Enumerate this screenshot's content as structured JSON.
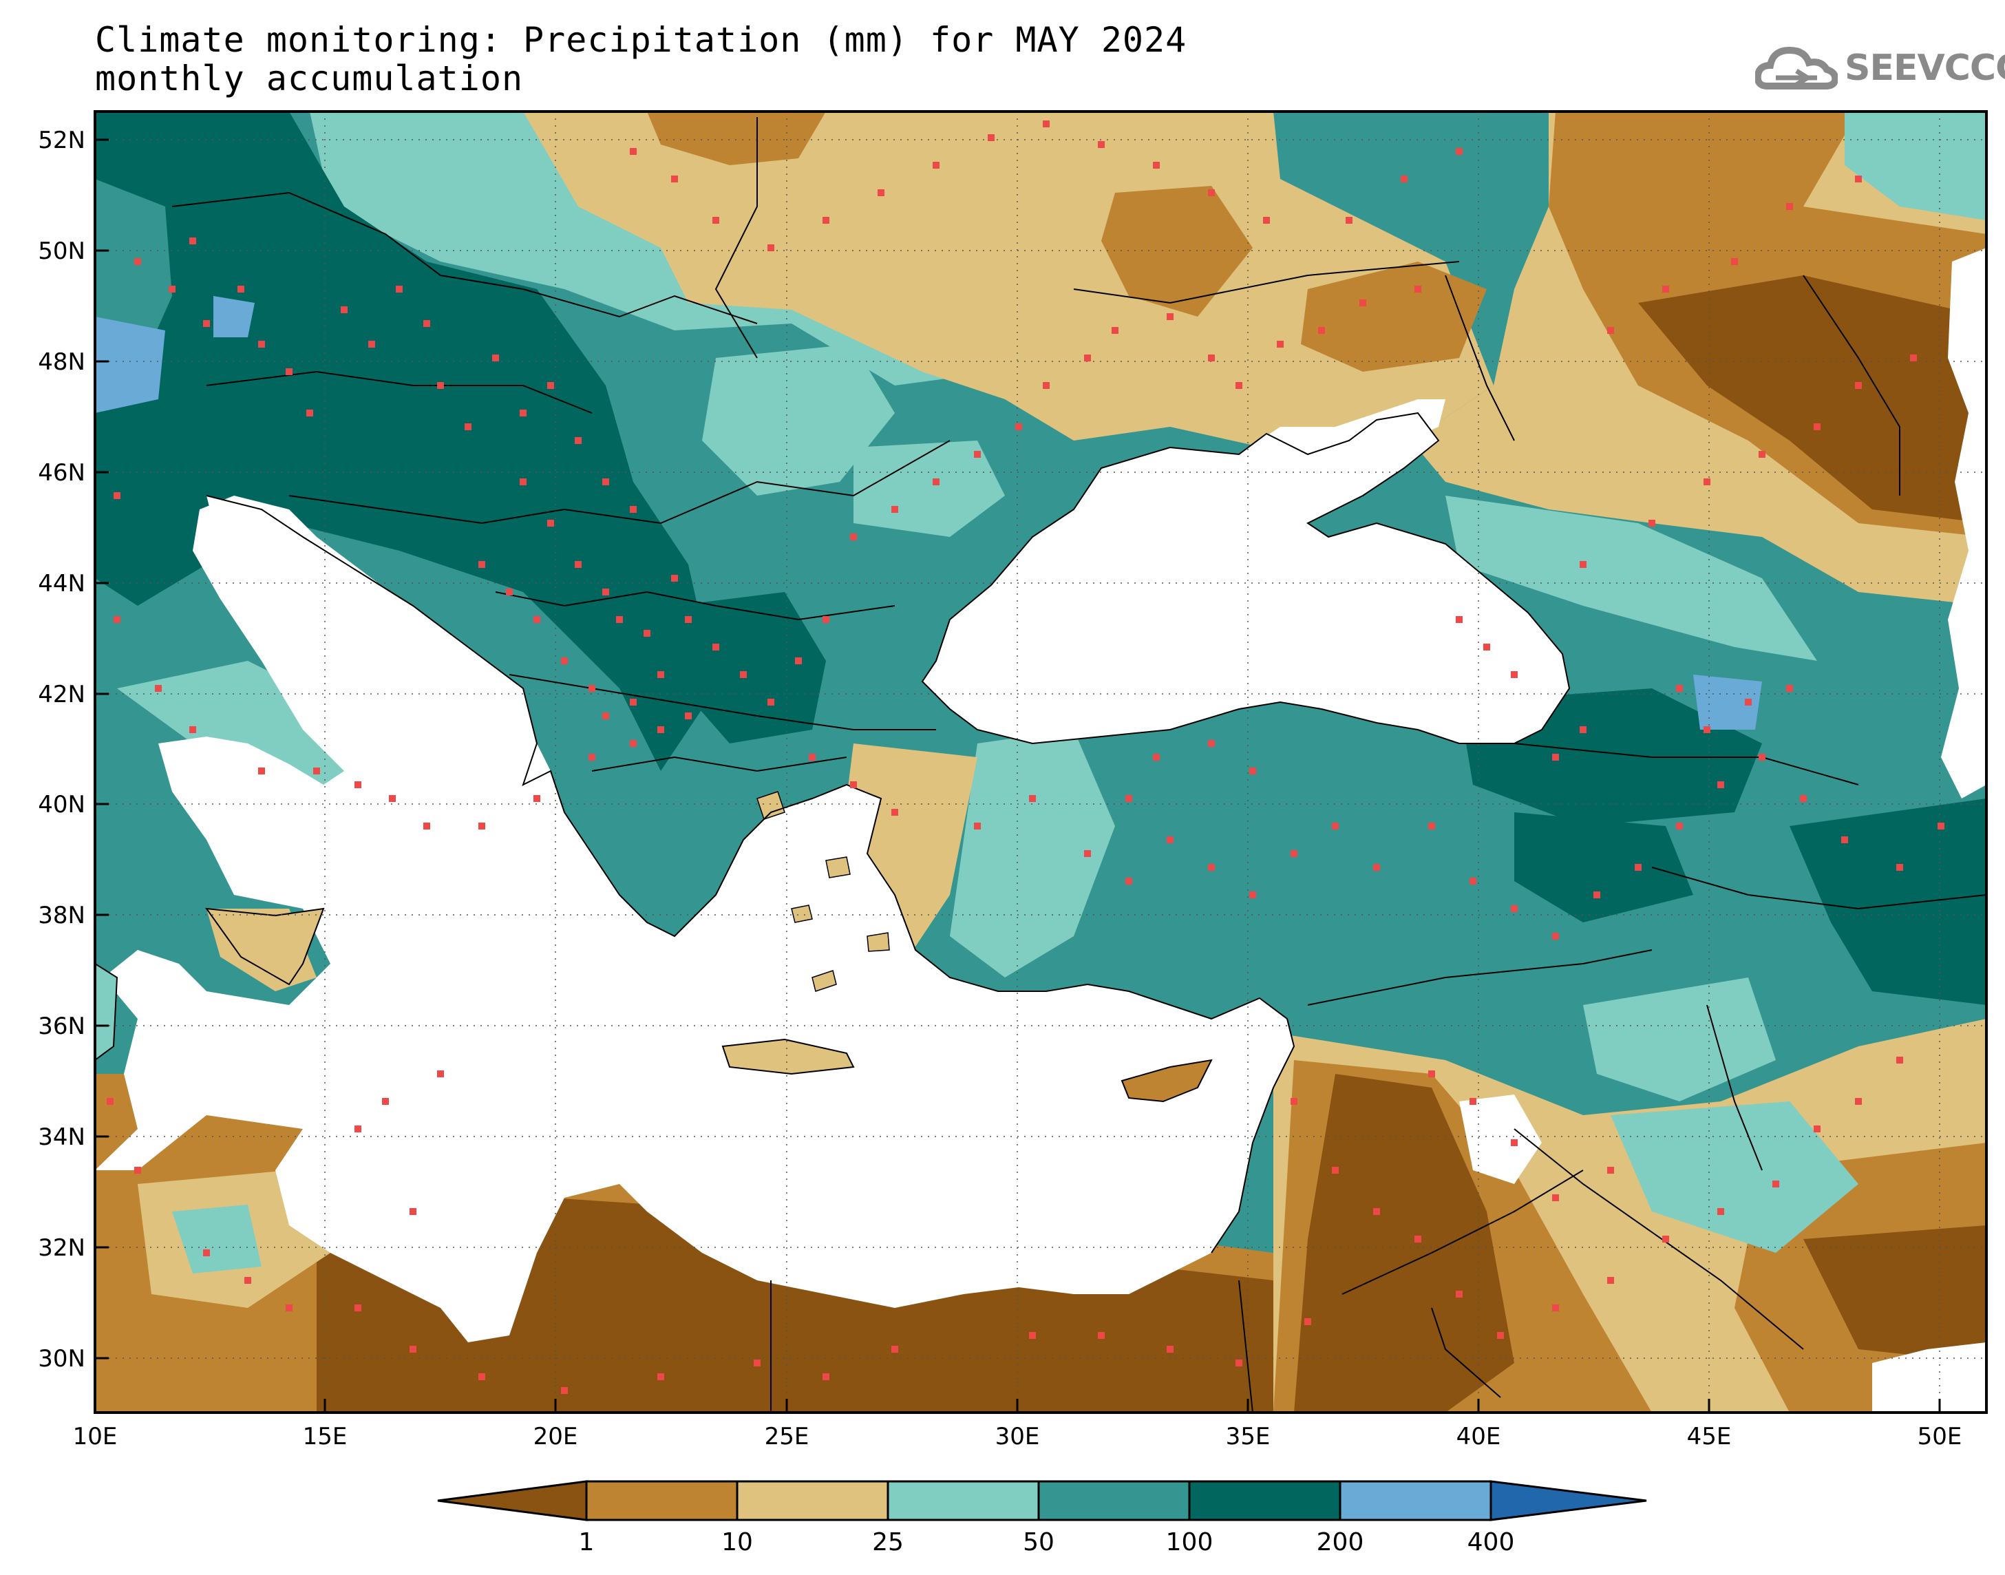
{
  "title": {
    "line1": "Climate monitoring: Precipitation (mm) for MAY 2024",
    "line2": "monthly accumulation"
  },
  "logo": {
    "text": "SEEVCCC",
    "icon": "cloud-icon"
  },
  "map": {
    "lon_range": [
      10,
      51
    ],
    "lat_range": [
      29,
      52.5
    ],
    "lat_ticks": [
      "52N",
      "50N",
      "48N",
      "46N",
      "44N",
      "42N",
      "40N",
      "38N",
      "36N",
      "34N",
      "32N",
      "30N"
    ],
    "lon_ticks": [
      "10E",
      "15E",
      "20E",
      "25E",
      "30E",
      "35E",
      "40E",
      "45E",
      "50E"
    ],
    "station_marker_color": "#f04848",
    "sea_color": "#ffffff"
  },
  "colorbar": {
    "boundaries": [
      "1",
      "10",
      "25",
      "50",
      "100",
      "200",
      "400"
    ],
    "colors": [
      "#8b5312",
      "#bf8432",
      "#dfc27e",
      "#80cdc1",
      "#359590",
      "#01665e",
      "#6aaad6",
      "#2167ac"
    ],
    "extend": "both"
  }
}
